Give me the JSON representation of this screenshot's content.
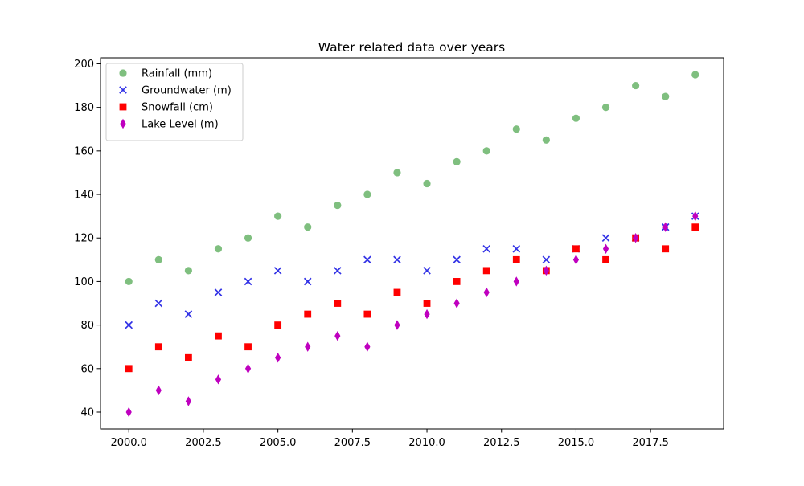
{
  "chart_data": {
    "type": "scatter",
    "title": "Water related data over years",
    "xlabel": "",
    "ylabel": "",
    "xlim": [
      1999.05,
      2019.95
    ],
    "ylim": [
      32.25,
      202.75
    ],
    "x": [
      2000,
      2001,
      2002,
      2003,
      2004,
      2005,
      2006,
      2007,
      2008,
      2009,
      2010,
      2011,
      2012,
      2013,
      2014,
      2015,
      2016,
      2017,
      2018,
      2019
    ],
    "x_ticks": [
      2000.0,
      2002.5,
      2005.0,
      2007.5,
      2010.0,
      2012.5,
      2015.0,
      2017.5
    ],
    "x_tick_labels": [
      "2000.0",
      "2002.5",
      "2005.0",
      "2007.5",
      "2010.0",
      "2012.5",
      "2015.0",
      "2017.5"
    ],
    "y_ticks": [
      40,
      60,
      80,
      100,
      120,
      140,
      160,
      180,
      200
    ],
    "y_tick_labels": [
      "40",
      "60",
      "80",
      "100",
      "120",
      "140",
      "160",
      "180",
      "200"
    ],
    "grid": false,
    "legend_position": "top-left",
    "series": [
      {
        "name": "Rainfall (mm)",
        "marker": "circle",
        "color": "#7fbf7f",
        "values": [
          100,
          110,
          105,
          115,
          120,
          130,
          125,
          135,
          140,
          150,
          145,
          155,
          160,
          170,
          165,
          175,
          180,
          190,
          185,
          195
        ]
      },
      {
        "name": "Groundwater (m)",
        "marker": "x",
        "color": "#3333e6",
        "values": [
          80,
          90,
          85,
          95,
          100,
          105,
          100,
          105,
          110,
          110,
          105,
          110,
          115,
          115,
          110,
          115,
          120,
          120,
          125,
          130
        ]
      },
      {
        "name": "Snowfall (cm)",
        "marker": "square",
        "color": "#ff0000",
        "values": [
          60,
          70,
          65,
          75,
          70,
          80,
          85,
          90,
          85,
          95,
          90,
          100,
          105,
          110,
          105,
          115,
          110,
          120,
          115,
          125
        ]
      },
      {
        "name": "Lake Level (m)",
        "marker": "thin-diamond",
        "color": "#bf00bf",
        "values": [
          40,
          50,
          45,
          55,
          60,
          65,
          70,
          75,
          70,
          80,
          85,
          90,
          95,
          100,
          105,
          110,
          115,
          120,
          125,
          130
        ]
      }
    ]
  }
}
